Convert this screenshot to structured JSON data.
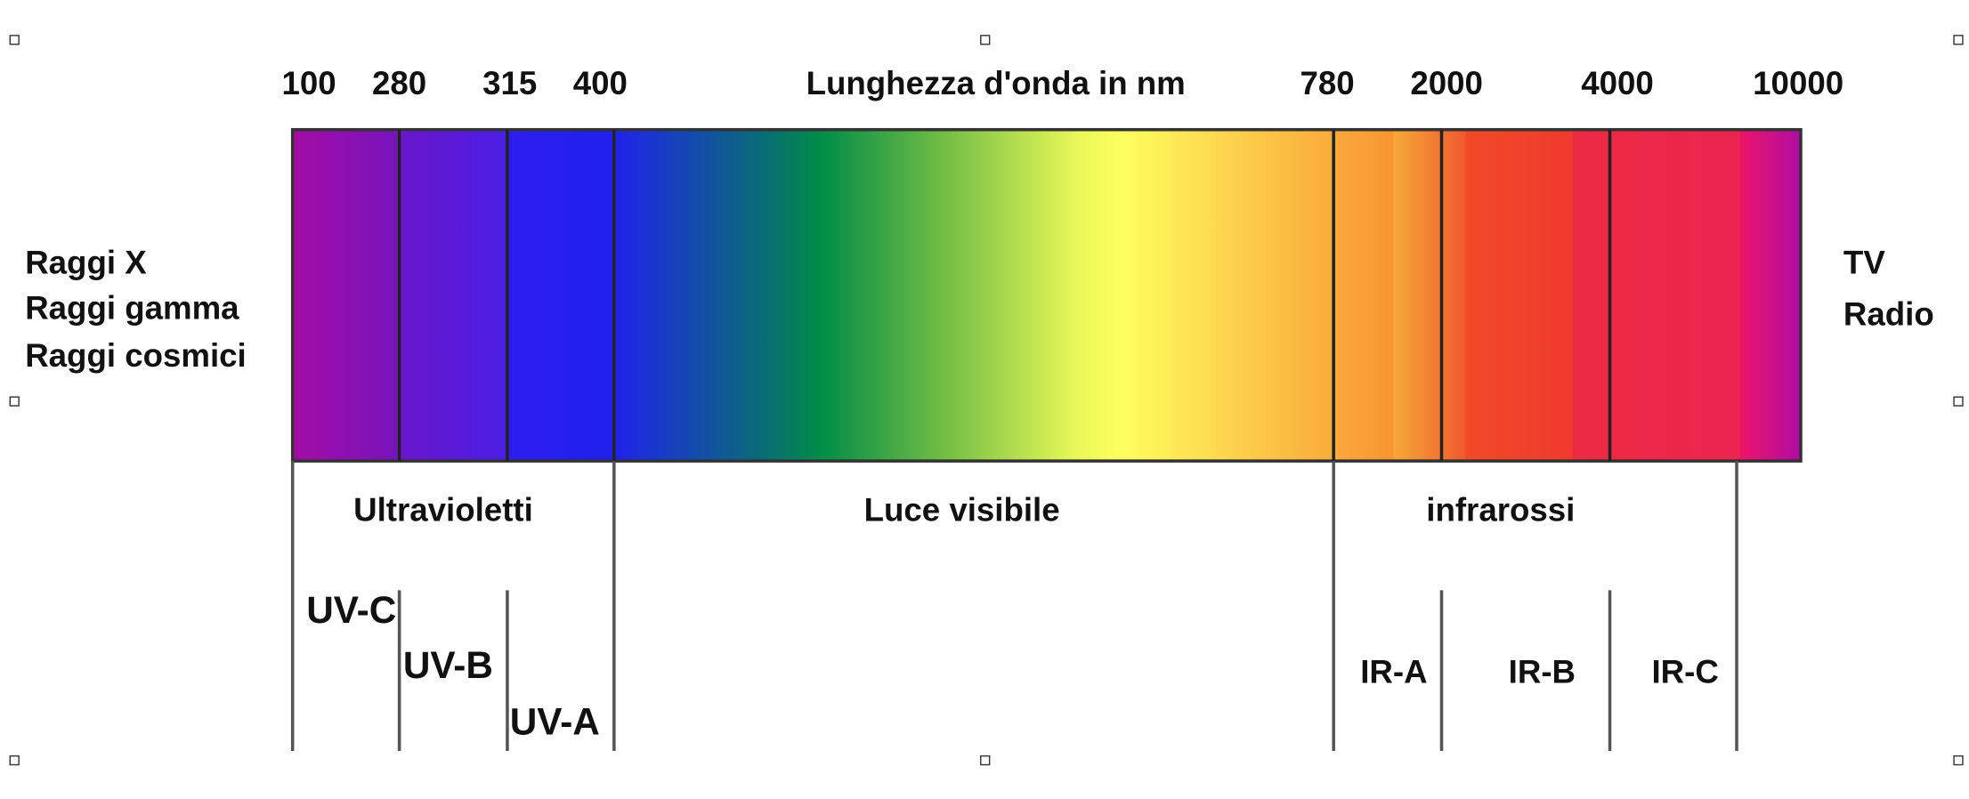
{
  "axis_title": "Lunghezza d'onda in nm",
  "wavelength_labels": [
    "100",
    "280",
    "315",
    "400",
    "780",
    "2000",
    "4000",
    "10000"
  ],
  "left_labels": [
    "Raggi X",
    "Raggi gamma",
    "Raggi cosmici"
  ],
  "right_labels": [
    "TV",
    "Radio"
  ],
  "regions": [
    "Ultravioletti",
    "Luce visibile",
    "infrarossi"
  ],
  "bands": [
    "UV-C",
    "UV-B",
    "UV-A",
    "IR-A",
    "IR-B",
    "IR-C"
  ]
}
